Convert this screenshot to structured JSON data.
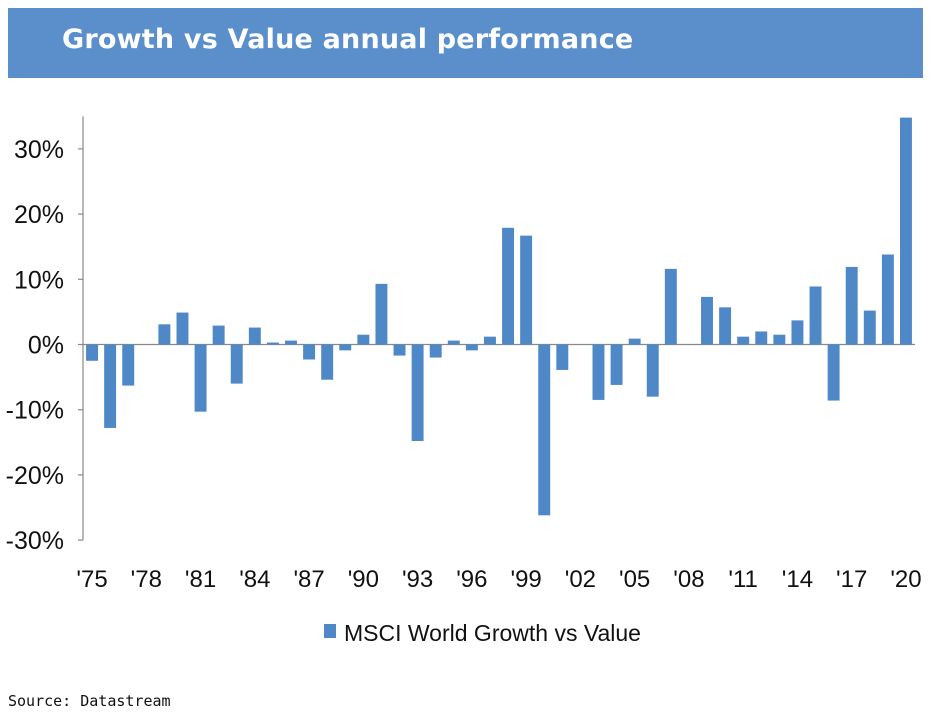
{
  "header": {
    "title": "Growth vs Value annual performance"
  },
  "footer": {
    "source": "Source: Datastream"
  },
  "colors": {
    "header_bg": "#5b8fcb",
    "bar": "#4f88c6",
    "axis": "#888888"
  },
  "chart_data": {
    "type": "bar",
    "title": "Growth vs Value annual performance",
    "xlabel": "",
    "ylabel": "",
    "ylim": [
      -30,
      35
    ],
    "yticks": [
      30,
      20,
      10,
      0,
      -10,
      -20,
      -30
    ],
    "ytick_labels": [
      "30%",
      "20%",
      "10%",
      "0%",
      "-10%",
      "-20%",
      "-30%"
    ],
    "xtick_labels": [
      "'75",
      "'78",
      "'81",
      "'84",
      "'87",
      "'90",
      "'93",
      "'96",
      "'99",
      "'02",
      "'05",
      "'08",
      "'11",
      "'14",
      "'17",
      "'20"
    ],
    "grid": false,
    "legend": {
      "position": "bottom",
      "entries": [
        "MSCI World Growth vs Value"
      ]
    },
    "categories": [
      1975,
      1976,
      1977,
      1978,
      1979,
      1980,
      1981,
      1982,
      1983,
      1984,
      1985,
      1986,
      1987,
      1988,
      1989,
      1990,
      1991,
      1992,
      1993,
      1994,
      1995,
      1996,
      1997,
      1998,
      1999,
      2000,
      2001,
      2002,
      2003,
      2004,
      2005,
      2006,
      2007,
      2008,
      2009,
      2010,
      2011,
      2012,
      2013,
      2014,
      2015,
      2016,
      2017,
      2018,
      2019,
      2020
    ],
    "series": [
      {
        "name": "MSCI World Growth vs Value",
        "values": [
          -2.5,
          -12.8,
          -6.3,
          0,
          3.1,
          4.9,
          -10.3,
          2.9,
          -6.0,
          2.6,
          0.3,
          0.6,
          -2.3,
          -5.4,
          -0.9,
          1.5,
          9.3,
          -1.7,
          -14.8,
          -2.0,
          0.6,
          -0.9,
          1.2,
          17.9,
          16.7,
          -26.2,
          -3.9,
          0,
          -8.5,
          -6.2,
          0.9,
          -8.0,
          11.6,
          0,
          7.3,
          5.7,
          1.2,
          2.0,
          1.5,
          3.7,
          8.9,
          -8.6,
          11.9,
          5.2,
          13.8,
          34.8
        ]
      }
    ]
  }
}
